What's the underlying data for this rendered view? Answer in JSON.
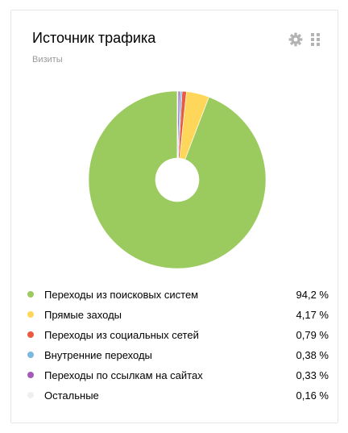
{
  "widget": {
    "title": "Источник трафика",
    "subtitle": "Визиты",
    "settings_icon": "gear-icon",
    "drag_icon": "drag-handle-icon"
  },
  "colors": {
    "gear": "#b3b3b3",
    "hole": "#ffffff",
    "slice_separator": "#ffffff"
  },
  "chart_data": {
    "type": "pie",
    "style": "donut",
    "legend_position": "bottom",
    "series": [
      {
        "name": "Переходы из поисковых систем",
        "value": 94.2,
        "display": "94,2 %",
        "color": "#9bcb5f"
      },
      {
        "name": "Прямые заходы",
        "value": 4.17,
        "display": "4,17 %",
        "color": "#fed75a"
      },
      {
        "name": "Переходы из социальных сетей",
        "value": 0.79,
        "display": "0,79 %",
        "color": "#ea5a41"
      },
      {
        "name": "Внутренние переходы",
        "value": 0.38,
        "display": "0,38 %",
        "color": "#7cb7e2"
      },
      {
        "name": "Переходы по ссылкам на сайтах",
        "value": 0.33,
        "display": "0,33 %",
        "color": "#a45ab8"
      },
      {
        "name": "Остальные",
        "value": 0.16,
        "display": "0,16 %",
        "color": "#efefef"
      }
    ]
  }
}
